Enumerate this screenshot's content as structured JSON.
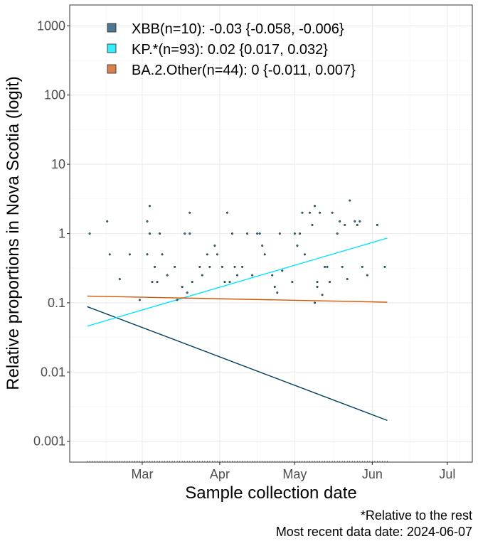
{
  "chart_data": {
    "type": "scatter",
    "xlabel": "Sample collection date",
    "ylabel": "Relative proportions in Nova Scotia (logit)",
    "y_scale": "log10",
    "ylim": [
      0.0005,
      2000
    ],
    "xlim": [
      "2024-02-01",
      "2024-07-11"
    ],
    "grid": true,
    "legend_position": "top-left",
    "y_ticks": [
      {
        "value": 0.001,
        "label": "0.001"
      },
      {
        "value": 0.01,
        "label": "0.01"
      },
      {
        "value": 0.1,
        "label": "0.1"
      },
      {
        "value": 1,
        "label": "1"
      },
      {
        "value": 10,
        "label": "10"
      },
      {
        "value": 100,
        "label": "100"
      },
      {
        "value": 1000,
        "label": "1000"
      }
    ],
    "x_ticks": [
      {
        "date": "2024-03-01",
        "label": "Mar"
      },
      {
        "date": "2024-04-01",
        "label": "Apr"
      },
      {
        "date": "2024-05-01",
        "label": "May"
      },
      {
        "date": "2024-06-01",
        "label": "Jun"
      },
      {
        "date": "2024-07-01",
        "label": "Jul"
      }
    ],
    "series": [
      {
        "name": "XBB(n=10): -0.03 {-0.058, -0.006}",
        "color": "#003f5c",
        "legend_fill": "#4d7891",
        "fit": [
          {
            "x": "2024-02-08",
            "y": 0.088
          },
          {
            "x": "2024-06-07",
            "y": 0.002
          }
        ]
      },
      {
        "name": "KP.*(n=93): 0.02 {0.017, 0.032}",
        "color": "#00e5ff",
        "legend_fill": "#33eeff",
        "fit": [
          {
            "x": "2024-02-08",
            "y": 0.046
          },
          {
            "x": "2024-06-07",
            "y": 0.86
          }
        ]
      },
      {
        "name": "BA.2.Other(n=44): 0 {-0.011, 0.007}",
        "color": "#d45500",
        "legend_fill": "#d9804d",
        "fit": [
          {
            "x": "2024-02-08",
            "y": 0.125
          },
          {
            "x": "2024-06-07",
            "y": 0.102
          }
        ]
      }
    ],
    "points": [
      {
        "x": "2024-02-09",
        "y": 1
      },
      {
        "x": "2024-02-16",
        "y": 1.5
      },
      {
        "x": "2024-02-17",
        "y": 0.5
      },
      {
        "x": "2024-02-21",
        "y": 0.22
      },
      {
        "x": "2024-02-25",
        "y": 0.5
      },
      {
        "x": "2024-02-29",
        "y": 0.11
      },
      {
        "x": "2024-03-03",
        "y": 1.5
      },
      {
        "x": "2024-03-03",
        "y": 0.5
      },
      {
        "x": "2024-03-04",
        "y": 2.5
      },
      {
        "x": "2024-03-04",
        "y": 1
      },
      {
        "x": "2024-03-05",
        "y": 0.2
      },
      {
        "x": "2024-03-06",
        "y": 0.33
      },
      {
        "x": "2024-03-07",
        "y": 0.2
      },
      {
        "x": "2024-03-08",
        "y": 1
      },
      {
        "x": "2024-03-09",
        "y": 0.5
      },
      {
        "x": "2024-03-11",
        "y": 0.25
      },
      {
        "x": "2024-03-14",
        "y": 0.33
      },
      {
        "x": "2024-03-15",
        "y": 0.11
      },
      {
        "x": "2024-03-17",
        "y": 0.17
      },
      {
        "x": "2024-03-18",
        "y": 1
      },
      {
        "x": "2024-03-19",
        "y": 0.14
      },
      {
        "x": "2024-03-20",
        "y": 2
      },
      {
        "x": "2024-03-20",
        "y": 1
      },
      {
        "x": "2024-03-21",
        "y": 0.2
      },
      {
        "x": "2024-03-24",
        "y": 0.33
      },
      {
        "x": "2024-03-25",
        "y": 0.25
      },
      {
        "x": "2024-03-27",
        "y": 0.5
      },
      {
        "x": "2024-03-28",
        "y": 0.33
      },
      {
        "x": "2024-03-30",
        "y": 0.67
      },
      {
        "x": "2024-03-31",
        "y": 0.5
      },
      {
        "x": "2024-04-02",
        "y": 0.33
      },
      {
        "x": "2024-04-03",
        "y": 0.2
      },
      {
        "x": "2024-04-04",
        "y": 2
      },
      {
        "x": "2024-04-05",
        "y": 0.2
      },
      {
        "x": "2024-04-06",
        "y": 1
      },
      {
        "x": "2024-04-07",
        "y": 0.33
      },
      {
        "x": "2024-04-08",
        "y": 0.25
      },
      {
        "x": "2024-04-10",
        "y": 0.33
      },
      {
        "x": "2024-04-12",
        "y": 1
      },
      {
        "x": "2024-04-14",
        "y": 0.25
      },
      {
        "x": "2024-04-16",
        "y": 1
      },
      {
        "x": "2024-04-17",
        "y": 1
      },
      {
        "x": "2024-04-18",
        "y": 0.67
      },
      {
        "x": "2024-04-19",
        "y": 0.5
      },
      {
        "x": "2024-04-22",
        "y": 0.25
      },
      {
        "x": "2024-04-23",
        "y": 0.17
      },
      {
        "x": "2024-04-24",
        "y": 0.14
      },
      {
        "x": "2024-04-25",
        "y": 1
      },
      {
        "x": "2024-04-26",
        "y": 0.29
      },
      {
        "x": "2024-04-30",
        "y": 0.2
      },
      {
        "x": "2024-05-01",
        "y": 1
      },
      {
        "x": "2024-05-02",
        "y": 0.67
      },
      {
        "x": "2024-05-03",
        "y": 1
      },
      {
        "x": "2024-05-04",
        "y": 2
      },
      {
        "x": "2024-05-05",
        "y": 0.5
      },
      {
        "x": "2024-05-07",
        "y": 2
      },
      {
        "x": "2024-05-08",
        "y": 1.33
      },
      {
        "x": "2024-05-09",
        "y": 2.5
      },
      {
        "x": "2024-05-09",
        "y": 0.1
      },
      {
        "x": "2024-05-10",
        "y": 0.2
      },
      {
        "x": "2024-05-10",
        "y": 0.17
      },
      {
        "x": "2024-05-11",
        "y": 2
      },
      {
        "x": "2024-05-12",
        "y": 0.13
      },
      {
        "x": "2024-05-13",
        "y": 0.33
      },
      {
        "x": "2024-05-14",
        "y": 0.33
      },
      {
        "x": "2024-05-15",
        "y": 0.2
      },
      {
        "x": "2024-05-16",
        "y": 2
      },
      {
        "x": "2024-05-18",
        "y": 1
      },
      {
        "x": "2024-05-19",
        "y": 1.5
      },
      {
        "x": "2024-05-20",
        "y": 0.33
      },
      {
        "x": "2024-05-21",
        "y": 1.33
      },
      {
        "x": "2024-05-22",
        "y": 0.22
      },
      {
        "x": "2024-05-23",
        "y": 3
      },
      {
        "x": "2024-05-25",
        "y": 1.5
      },
      {
        "x": "2024-05-26",
        "y": 1.33
      },
      {
        "x": "2024-05-27",
        "y": 1.5
      },
      {
        "x": "2024-05-28",
        "y": 0.33
      },
      {
        "x": "2024-05-30",
        "y": 0.25
      },
      {
        "x": "2024-06-03",
        "y": 1.33
      },
      {
        "x": "2024-06-06",
        "y": 0.33
      }
    ]
  },
  "caption": {
    "line1": "*Relative to the rest",
    "line2": "Most recent data date: 2024-06-07"
  }
}
